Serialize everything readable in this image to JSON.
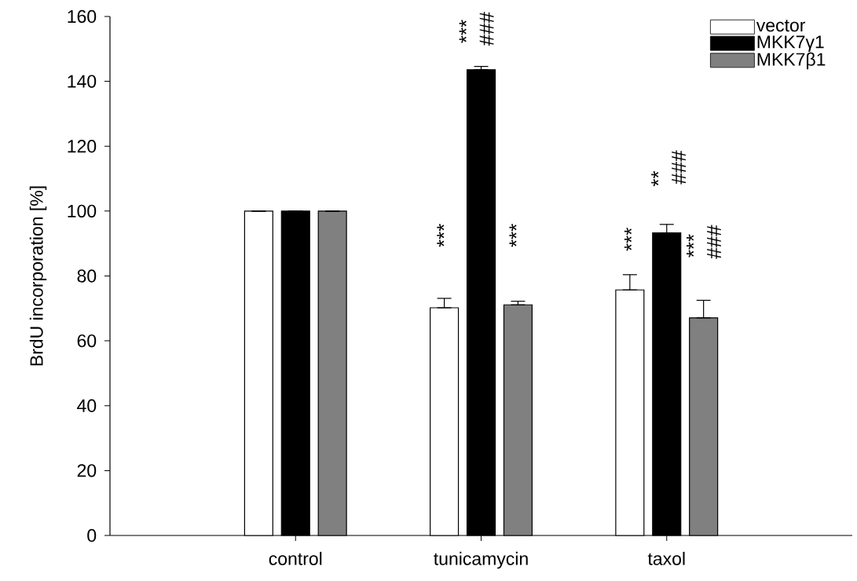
{
  "chart_data": {
    "type": "bar",
    "ylabel": "BrdU incorporation [%]",
    "categories": [
      "control",
      "tunicamycin",
      "taxol"
    ],
    "series": [
      {
        "name": "vector",
        "color": "#ffffff",
        "values": [
          100,
          70.2,
          75.7
        ],
        "errors": [
          null,
          [
            70.2,
            73.1
          ],
          [
            75.7,
            80.4
          ]
        ]
      },
      {
        "name": "MKK7γ1",
        "color": "#000000",
        "values": [
          100,
          143.6,
          93.3
        ],
        "errors": [
          null,
          [
            143.6,
            144.6
          ],
          [
            93.3,
            95.9
          ]
        ]
      },
      {
        "name": "MKK7β1",
        "color": "#808080",
        "values": [
          100,
          71.1,
          67.1
        ],
        "errors": [
          null,
          [
            71.1,
            72.2
          ],
          [
            67.1,
            72.5
          ]
        ]
      }
    ],
    "ylim": [
      0,
      160
    ],
    "yticks": [
      0,
      20,
      40,
      60,
      80,
      100,
      120,
      140,
      160
    ],
    "grid": false,
    "legend": "top right",
    "annotations": [
      "***",
      "***",
      "###",
      "***",
      "***",
      "**",
      "###",
      "***",
      "###"
    ]
  }
}
